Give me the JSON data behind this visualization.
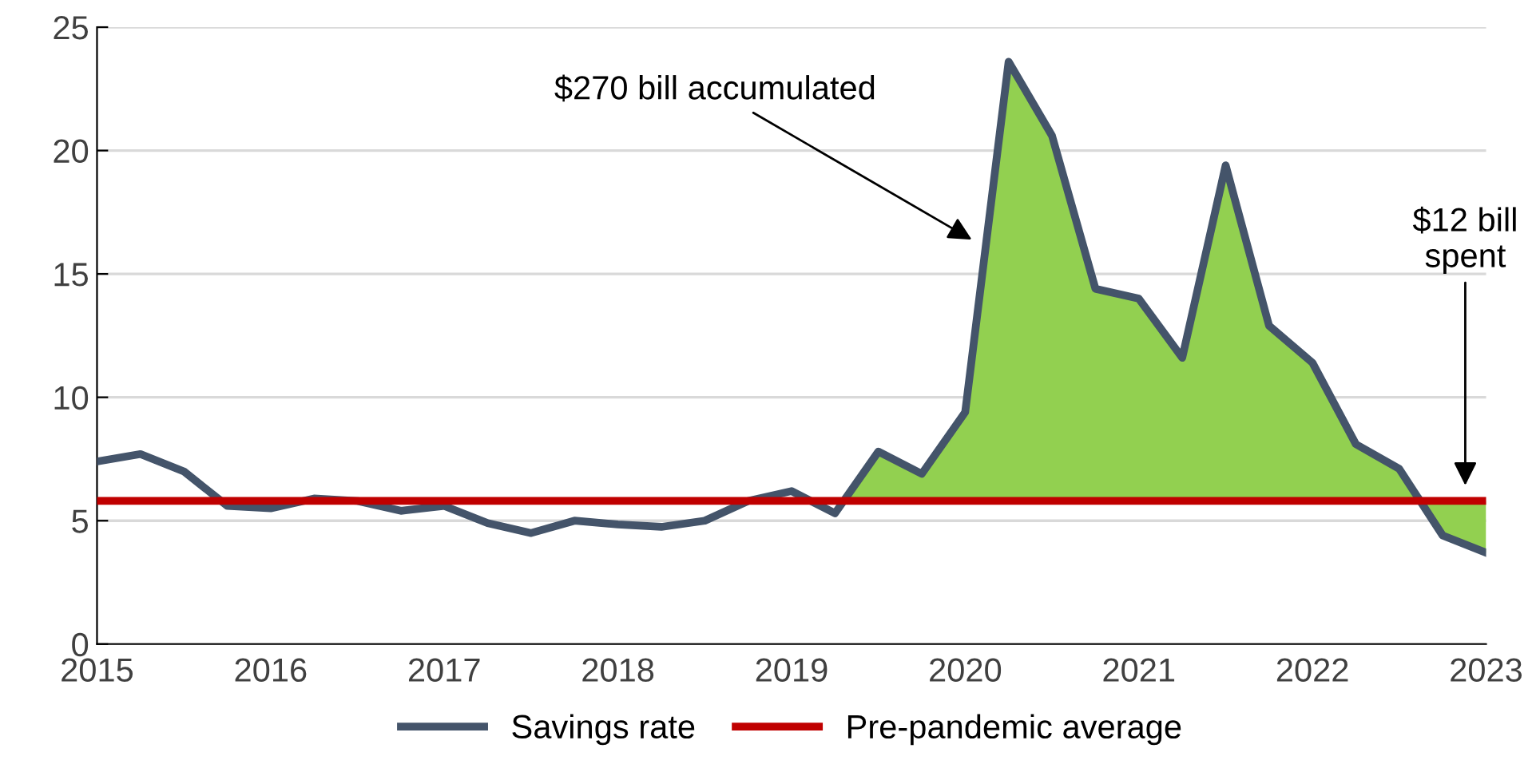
{
  "chart_data": {
    "type": "line",
    "x": [
      2015,
      2015.25,
      2015.5,
      2015.75,
      2016,
      2016.25,
      2016.5,
      2016.75,
      2017,
      2017.25,
      2017.5,
      2017.75,
      2018,
      2018.25,
      2018.5,
      2018.75,
      2019,
      2019.25,
      2019.5,
      2019.75,
      2020,
      2020.25,
      2020.5,
      2020.75,
      2021,
      2021.25,
      2021.5,
      2021.75,
      2022,
      2022.25,
      2022.5,
      2022.75,
      2023
    ],
    "series": [
      {
        "type": "area",
        "color": "#92d050",
        "x": [
          2019.3,
          2019.5,
          2019.75,
          2020,
          2020.25,
          2020.5,
          2020.75,
          2021,
          2021.25,
          2021.5,
          2021.75,
          2022,
          2022.25,
          2022.5,
          2022.62,
          2022.75,
          2023,
          2023
        ],
        "values": [
          5.8,
          7.8,
          6.9,
          9.4,
          23.6,
          20.6,
          14.4,
          14.0,
          11.6,
          19.4,
          12.9,
          11.4,
          8.1,
          7.1,
          5.8,
          4.4,
          3.7,
          5.8
        ]
      },
      {
        "name": "Savings rate",
        "color": "#44546a",
        "values": [
          7.4,
          7.7,
          7.0,
          5.6,
          5.5,
          5.9,
          5.8,
          5.4,
          5.6,
          4.9,
          4.5,
          5.0,
          4.85,
          4.75,
          5.0,
          5.8,
          6.2,
          5.3,
          7.8,
          6.9,
          9.4,
          23.6,
          20.6,
          14.4,
          14.0,
          11.6,
          19.4,
          12.9,
          11.4,
          8.1,
          7.1,
          4.4,
          3.7
        ]
      }
    ],
    "ref_lines": [
      {
        "axis": "y",
        "value": 5.8,
        "label": "Pre-pandemic average",
        "color": "#c00000"
      }
    ],
    "annotations": [
      {
        "text": "$270 bill accumulated",
        "x": 2020.06,
        "y": 16.3
      },
      "$12 bill\nspent"
    ],
    "xlim": [
      2015,
      2023
    ],
    "xticks": [
      2015,
      2016,
      2017,
      2018,
      2019,
      2020,
      2021,
      2022,
      2023
    ],
    "ylim": [
      0,
      25
    ],
    "yticks": [
      0,
      5,
      10,
      15,
      20,
      25
    ],
    "grid": "y",
    "legend": "bottom",
    "marker": "none",
    "line_style": "solid"
  }
}
